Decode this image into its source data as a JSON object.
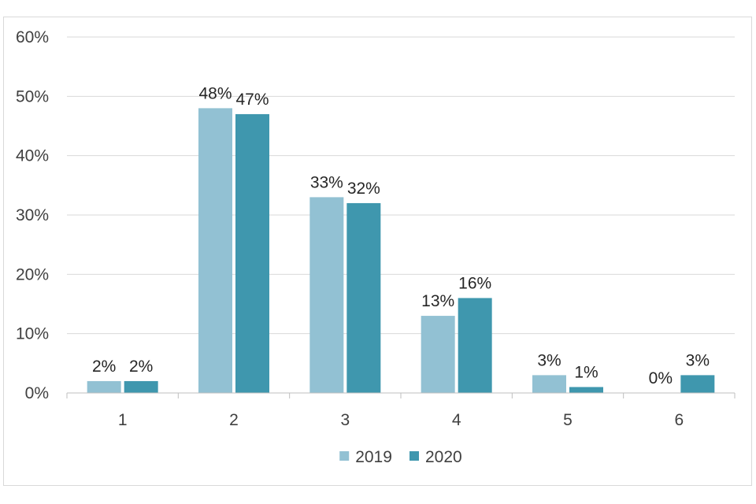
{
  "chart_data": {
    "type": "bar",
    "categories": [
      "1",
      "2",
      "3",
      "4",
      "5",
      "6"
    ],
    "series": [
      {
        "name": "2019",
        "values": [
          2,
          48,
          33,
          13,
          3,
          0
        ],
        "labels": [
          "2%",
          "48%",
          "33%",
          "13%",
          "3%",
          "0%"
        ],
        "color": "#92c1d3"
      },
      {
        "name": "2020",
        "values": [
          2,
          47,
          32,
          16,
          1,
          3
        ],
        "labels": [
          "2%",
          "47%",
          "32%",
          "16%",
          "1%",
          "3%"
        ],
        "color": "#3f97ae"
      }
    ],
    "ylim": [
      0,
      60
    ],
    "yticks": [
      "0%",
      "10%",
      "20%",
      "30%",
      "40%",
      "50%",
      "60%"
    ],
    "ytick_values": [
      0,
      10,
      20,
      30,
      40,
      50,
      60
    ],
    "grid": true,
    "legend": "bottom-center",
    "title": "",
    "xlabel": "",
    "ylabel": ""
  },
  "colors": {
    "gridline": "#d9d9d9",
    "axis": "#bfbfbf",
    "text": "#404040"
  }
}
